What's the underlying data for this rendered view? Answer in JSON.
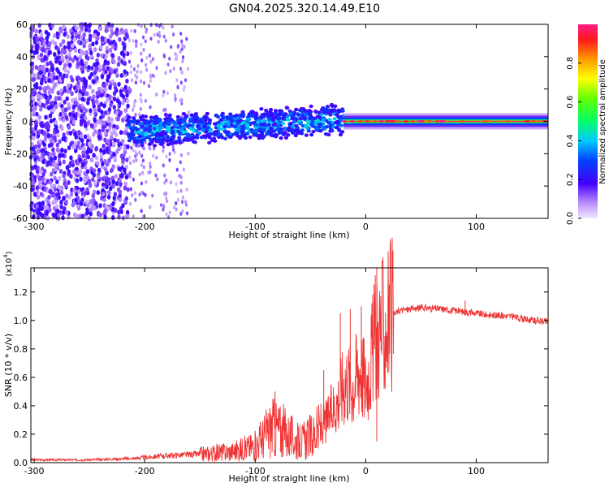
{
  "title": "GN04.2025.320.14.49.E10",
  "chart_data": [
    {
      "type": "heatmap",
      "name": "spectrogram",
      "xlabel": "Height of straight line (km)",
      "ylabel": "Frequency (Hz)",
      "xlim": [
        -303,
        165
      ],
      "ylim": [
        -60,
        60
      ],
      "x_ticks": [
        -300,
        -200,
        -100,
        0,
        100
      ],
      "x_tick_labels": [
        "-300",
        "-200",
        "-100",
        "0",
        "100"
      ],
      "y_ticks": [
        -60,
        -40,
        -20,
        0,
        20,
        40,
        60
      ],
      "y_tick_labels": [
        "-60",
        "-40",
        "-20",
        "0",
        "20",
        "40",
        "60"
      ],
      "colorbar": {
        "label": "Normalized spectral amplitude",
        "range": [
          0,
          1
        ],
        "ticks": [
          0,
          0.2,
          0.4,
          0.6,
          0.8
        ],
        "tick_labels": [
          "0.0",
          "0.2",
          "0.4",
          "0.6",
          "0.8"
        ]
      },
      "regions": [
        {
          "x_from": -303,
          "x_to": -215,
          "description_level": "broadband noise",
          "freq_half_width": 60,
          "amplitude": 0.12
        },
        {
          "x_from": -215,
          "x_to": -160,
          "description_level": "sparse noise",
          "freq_half_width": 60,
          "amplitude": 0.05
        },
        {
          "x_from": -215,
          "x_to": -20,
          "description_level": "signal band",
          "freq_center": -2,
          "freq_half_width": 10,
          "amplitude": 0.3
        },
        {
          "x_from": -20,
          "x_to": 165,
          "description_level": "narrow carrier",
          "freq_center": 0,
          "freq_half_width": 3,
          "amplitude": 0.95
        }
      ]
    },
    {
      "type": "line",
      "name": "snr",
      "xlabel": "Height of straight line (km)",
      "ylabel": "SNR (10 * v/v)",
      "y_multiplier": "(x10",
      "y_multiplier_exp": "4",
      "y_multiplier_close": ")",
      "xlim": [
        -303,
        165
      ],
      "ylim": [
        0,
        1.37
      ],
      "x_ticks": [
        -300,
        -200,
        -100,
        0,
        100
      ],
      "x_tick_labels": [
        "-300",
        "-200",
        "-100",
        "0",
        "100"
      ],
      "y_ticks": [
        0,
        0.2,
        0.4,
        0.6,
        0.8,
        1.0,
        1.2
      ],
      "y_tick_labels": [
        "0.0",
        "0.2",
        "0.4",
        "0.6",
        "0.8",
        "1.0",
        "1.2"
      ],
      "color": "#ee3333",
      "series": [
        {
          "name": "SNR",
          "x": [
            -303,
            -250,
            -210,
            -180,
            -150,
            -120,
            -100,
            -85,
            -75,
            -60,
            -45,
            -35,
            -25,
            -18,
            -12,
            -5,
            0,
            5,
            10,
            20,
            30,
            50,
            70,
            90,
            110,
            130,
            150,
            165
          ],
          "y": [
            0.02,
            0.02,
            0.03,
            0.05,
            0.06,
            0.08,
            0.12,
            0.25,
            0.22,
            0.14,
            0.2,
            0.3,
            0.45,
            0.6,
            0.55,
            0.7,
            0.55,
            0.75,
            0.9,
            1.0,
            1.07,
            1.09,
            1.08,
            1.06,
            1.04,
            1.03,
            1.0,
            0.99
          ],
          "spikes": [
            [
              -82,
              0.5
            ],
            [
              -38,
              0.65
            ],
            [
              -23,
              1.05
            ],
            [
              -14,
              1.08
            ],
            [
              -4,
              1.1
            ],
            [
              10,
              1.37
            ],
            [
              10,
              0.15
            ],
            [
              90,
              1.14
            ]
          ]
        }
      ]
    }
  ]
}
